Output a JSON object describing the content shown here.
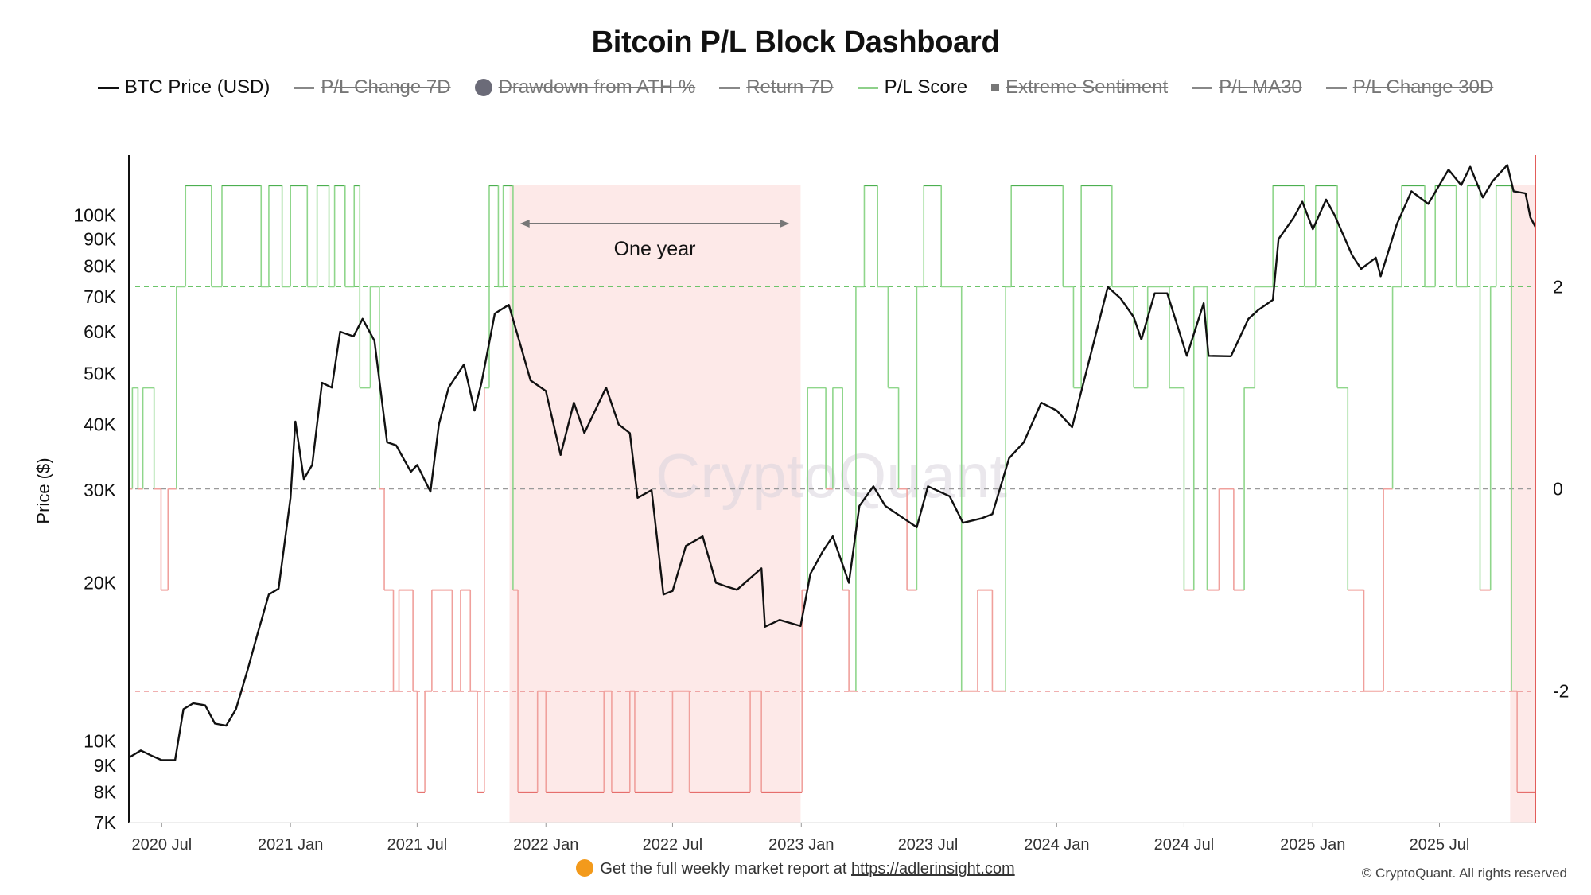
{
  "title": "Bitcoin P/L Block Dashboard",
  "legend": [
    {
      "label": "BTC Price (USD)",
      "marker": "line",
      "color": "#111111",
      "active": true
    },
    {
      "label": "P/L Change 7D",
      "marker": "line",
      "color": "#888888",
      "active": false
    },
    {
      "label": "Drawdown from ATH %",
      "marker": "dot",
      "color": "#6b6b78",
      "active": false
    },
    {
      "label": "Return 7D",
      "marker": "line",
      "color": "#888888",
      "active": false
    },
    {
      "label": "P/L Score",
      "marker": "line",
      "color": "#8ed08a",
      "active": true
    },
    {
      "label": "Extreme Sentiment",
      "marker": "square",
      "color": "#777777",
      "active": false
    },
    {
      "label": "P/L MA30",
      "marker": "line",
      "color": "#888888",
      "active": false
    },
    {
      "label": "P/L Change 30D",
      "marker": "line",
      "color": "#888888",
      "active": false
    }
  ],
  "footer": {
    "text": "Get the full weekly market report at",
    "url": "https://adlerinsight.com"
  },
  "copyright": "© CryptoQuant. All rights reserved",
  "watermark": "CryptoQuant",
  "chart_data": {
    "type": "line",
    "ylabel": "Price ($)",
    "y_scale": "log",
    "ylim": [
      7000,
      130000
    ],
    "y2lim": [
      -3.3,
      3.3
    ],
    "y_ticks": [
      {
        "label": "7K",
        "value": 7000
      },
      {
        "label": "8K",
        "value": 8000
      },
      {
        "label": "9K",
        "value": 9000
      },
      {
        "label": "10K",
        "value": 10000
      },
      {
        "label": "20K",
        "value": 20000
      },
      {
        "label": "30K",
        "value": 30000
      },
      {
        "label": "40K",
        "value": 40000
      },
      {
        "label": "50K",
        "value": 50000
      },
      {
        "label": "60K",
        "value": 60000
      },
      {
        "label": "70K",
        "value": 70000
      },
      {
        "label": "80K",
        "value": 80000
      },
      {
        "label": "90K",
        "value": 90000
      },
      {
        "label": "100K",
        "value": 100000
      }
    ],
    "y2_ticks": [
      {
        "label": "2",
        "value": 2
      },
      {
        "label": "0",
        "value": 0
      },
      {
        "label": "-2",
        "value": -2
      }
    ],
    "x_range": [
      "2020-05-15",
      "2025-11-15"
    ],
    "x_ticks": [
      {
        "label": "2020 Jul",
        "date": "2020-07-01"
      },
      {
        "label": "2021 Jan",
        "date": "2021-01-01"
      },
      {
        "label": "2021 Jul",
        "date": "2021-07-01"
      },
      {
        "label": "2022 Jan",
        "date": "2022-01-01"
      },
      {
        "label": "2022 Jul",
        "date": "2022-07-01"
      },
      {
        "label": "2023 Jan",
        "date": "2023-01-01"
      },
      {
        "label": "2023 Jul",
        "date": "2023-07-01"
      },
      {
        "label": "2024 Jan",
        "date": "2024-01-01"
      },
      {
        "label": "2024 Jul",
        "date": "2024-07-01"
      },
      {
        "label": "2025 Jan",
        "date": "2025-01-01"
      },
      {
        "label": "2025 Jul",
        "date": "2025-07-01"
      }
    ],
    "threshold_lines": [
      {
        "value": 2,
        "color": "#6cc46a"
      },
      {
        "value": 0,
        "color": "#9a9a9a"
      },
      {
        "value": -2,
        "color": "#e06060"
      }
    ],
    "shaded_regions": [
      {
        "start": "2021-11-10",
        "end": "2022-12-31",
        "color": "#fde9e8"
      },
      {
        "start": "2025-10-10",
        "end": "2025-11-15",
        "color": "#fde9e8"
      }
    ],
    "annotation": {
      "text": "One year",
      "start": "2021-11-25",
      "end": "2022-12-15",
      "y_value": 105000
    },
    "series": [
      {
        "name": "BTC Price (USD)",
        "color": "#111111",
        "points": [
          [
            "2020-05-15",
            9300
          ],
          [
            "2020-06-01",
            9600
          ],
          [
            "2020-06-15",
            9400
          ],
          [
            "2020-07-01",
            9200
          ],
          [
            "2020-07-20",
            9200
          ],
          [
            "2020-08-01",
            11500
          ],
          [
            "2020-08-15",
            11800
          ],
          [
            "2020-09-01",
            11700
          ],
          [
            "2020-09-15",
            10800
          ],
          [
            "2020-10-01",
            10700
          ],
          [
            "2020-10-15",
            11500
          ],
          [
            "2020-11-01",
            13700
          ],
          [
            "2020-11-15",
            16000
          ],
          [
            "2020-12-01",
            19000
          ],
          [
            "2020-12-15",
            19500
          ],
          [
            "2021-01-01",
            29000
          ],
          [
            "2021-01-08",
            40500
          ],
          [
            "2021-01-20",
            31500
          ],
          [
            "2021-02-01",
            33500
          ],
          [
            "2021-02-15",
            48000
          ],
          [
            "2021-03-01",
            47000
          ],
          [
            "2021-03-13",
            60000
          ],
          [
            "2021-04-01",
            58800
          ],
          [
            "2021-04-14",
            63500
          ],
          [
            "2021-05-01",
            57700
          ],
          [
            "2021-05-19",
            37000
          ],
          [
            "2021-06-01",
            36500
          ],
          [
            "2021-06-22",
            32500
          ],
          [
            "2021-07-01",
            33500
          ],
          [
            "2021-07-20",
            29800
          ],
          [
            "2021-08-01",
            40000
          ],
          [
            "2021-08-15",
            47000
          ],
          [
            "2021-09-06",
            52000
          ],
          [
            "2021-09-21",
            42500
          ],
          [
            "2021-10-01",
            48000
          ],
          [
            "2021-10-20",
            65000
          ],
          [
            "2021-11-09",
            67500
          ],
          [
            "2021-11-25",
            57000
          ],
          [
            "2021-12-10",
            48500
          ],
          [
            "2022-01-01",
            46300
          ],
          [
            "2022-01-22",
            35000
          ],
          [
            "2022-02-10",
            44000
          ],
          [
            "2022-02-25",
            38500
          ],
          [
            "2022-03-28",
            47000
          ],
          [
            "2022-04-15",
            40000
          ],
          [
            "2022-05-01",
            38500
          ],
          [
            "2022-05-12",
            29000
          ],
          [
            "2022-06-01",
            30000
          ],
          [
            "2022-06-18",
            19000
          ],
          [
            "2022-07-01",
            19300
          ],
          [
            "2022-07-20",
            23500
          ],
          [
            "2022-08-13",
            24500
          ],
          [
            "2022-09-01",
            20000
          ],
          [
            "2022-09-15",
            19700
          ],
          [
            "2022-10-01",
            19400
          ],
          [
            "2022-11-05",
            21300
          ],
          [
            "2022-11-10",
            16500
          ],
          [
            "2022-12-01",
            17000
          ],
          [
            "2022-12-31",
            16550
          ],
          [
            "2023-01-14",
            20800
          ],
          [
            "2023-02-01",
            23000
          ],
          [
            "2023-02-15",
            24500
          ],
          [
            "2023-03-10",
            20000
          ],
          [
            "2023-03-25",
            28000
          ],
          [
            "2023-04-14",
            30500
          ],
          [
            "2023-05-01",
            28000
          ],
          [
            "2023-06-15",
            25500
          ],
          [
            "2023-07-01",
            30500
          ],
          [
            "2023-08-01",
            29200
          ],
          [
            "2023-08-20",
            26000
          ],
          [
            "2023-09-15",
            26500
          ],
          [
            "2023-10-01",
            27000
          ],
          [
            "2023-10-25",
            34500
          ],
          [
            "2023-11-15",
            37000
          ],
          [
            "2023-12-10",
            44000
          ],
          [
            "2024-01-01",
            42500
          ],
          [
            "2024-01-23",
            39500
          ],
          [
            "2024-02-15",
            52000
          ],
          [
            "2024-03-14",
            73000
          ],
          [
            "2024-04-01",
            69500
          ],
          [
            "2024-04-20",
            64000
          ],
          [
            "2024-05-01",
            58000
          ],
          [
            "2024-05-20",
            71000
          ],
          [
            "2024-06-07",
            71000
          ],
          [
            "2024-07-05",
            54000
          ],
          [
            "2024-07-29",
            68000
          ],
          [
            "2024-08-05",
            54000
          ],
          [
            "2024-09-06",
            53900
          ],
          [
            "2024-10-01",
            63500
          ],
          [
            "2024-10-15",
            66000
          ],
          [
            "2024-11-05",
            69000
          ],
          [
            "2024-11-13",
            90000
          ],
          [
            "2024-12-05",
            99000
          ],
          [
            "2024-12-17",
            106000
          ],
          [
            "2025-01-01",
            94000
          ],
          [
            "2025-01-20",
            107000
          ],
          [
            "2025-02-01",
            100000
          ],
          [
            "2025-02-26",
            84000
          ],
          [
            "2025-03-11",
            79000
          ],
          [
            "2025-04-01",
            83000
          ],
          [
            "2025-04-08",
            76500
          ],
          [
            "2025-05-01",
            96000
          ],
          [
            "2025-05-22",
            111000
          ],
          [
            "2025-06-15",
            105000
          ],
          [
            "2025-07-14",
            122000
          ],
          [
            "2025-08-01",
            114000
          ],
          [
            "2025-08-14",
            123500
          ],
          [
            "2025-09-01",
            108000
          ],
          [
            "2025-09-15",
            116000
          ],
          [
            "2025-10-06",
            124500
          ],
          [
            "2025-10-15",
            111000
          ],
          [
            "2025-11-01",
            110000
          ],
          [
            "2025-11-08",
            99000
          ],
          [
            "2025-11-15",
            95000
          ]
        ]
      },
      {
        "name": "P/L Score",
        "type": "step",
        "points": [
          [
            "2020-05-15",
            0
          ],
          [
            "2020-05-20",
            1
          ],
          [
            "2020-05-28",
            0
          ],
          [
            "2020-06-04",
            1
          ],
          [
            "2020-06-20",
            0
          ],
          [
            "2020-06-30",
            -1
          ],
          [
            "2020-07-10",
            0
          ],
          [
            "2020-07-22",
            2
          ],
          [
            "2020-08-04",
            3
          ],
          [
            "2020-09-10",
            2
          ],
          [
            "2020-09-25",
            3
          ],
          [
            "2020-11-20",
            2
          ],
          [
            "2020-12-01",
            3
          ],
          [
            "2020-12-20",
            2
          ],
          [
            "2021-01-01",
            3
          ],
          [
            "2021-01-25",
            2
          ],
          [
            "2021-02-08",
            3
          ],
          [
            "2021-02-25",
            2
          ],
          [
            "2021-03-05",
            3
          ],
          [
            "2021-03-20",
            2
          ],
          [
            "2021-04-02",
            3
          ],
          [
            "2021-04-10",
            1
          ],
          [
            "2021-04-25",
            2
          ],
          [
            "2021-05-08",
            0
          ],
          [
            "2021-05-15",
            -1
          ],
          [
            "2021-05-28",
            -2
          ],
          [
            "2021-06-05",
            -1
          ],
          [
            "2021-06-25",
            -2
          ],
          [
            "2021-07-01",
            -3
          ],
          [
            "2021-07-12",
            -2
          ],
          [
            "2021-07-22",
            -1
          ],
          [
            "2021-08-10",
            -1
          ],
          [
            "2021-08-20",
            -2
          ],
          [
            "2021-09-01",
            -1
          ],
          [
            "2021-09-15",
            -2
          ],
          [
            "2021-09-25",
            -3
          ],
          [
            "2021-10-05",
            1
          ],
          [
            "2021-10-12",
            3
          ],
          [
            "2021-10-25",
            2
          ],
          [
            "2021-11-01",
            3
          ],
          [
            "2021-11-15",
            -1
          ],
          [
            "2021-11-22",
            -3
          ],
          [
            "2021-12-20",
            -2
          ],
          [
            "2022-01-01",
            -3
          ],
          [
            "2022-03-25",
            -2
          ],
          [
            "2022-04-05",
            -3
          ],
          [
            "2022-05-01",
            -2
          ],
          [
            "2022-05-08",
            -3
          ],
          [
            "2022-07-01",
            -2
          ],
          [
            "2022-07-25",
            -3
          ],
          [
            "2022-10-20",
            -2
          ],
          [
            "2022-11-05",
            -3
          ],
          [
            "2023-01-02",
            -1
          ],
          [
            "2023-01-10",
            1
          ],
          [
            "2023-02-05",
            0
          ],
          [
            "2023-02-15",
            1
          ],
          [
            "2023-03-01",
            -1
          ],
          [
            "2023-03-10",
            -2
          ],
          [
            "2023-03-20",
            2
          ],
          [
            "2023-04-01",
            3
          ],
          [
            "2023-04-20",
            2
          ],
          [
            "2023-05-05",
            1
          ],
          [
            "2023-05-20",
            0
          ],
          [
            "2023-06-01",
            -1
          ],
          [
            "2023-06-15",
            2
          ],
          [
            "2023-06-25",
            3
          ],
          [
            "2023-07-20",
            2
          ],
          [
            "2023-08-18",
            -2
          ],
          [
            "2023-09-10",
            -1
          ],
          [
            "2023-10-01",
            -2
          ],
          [
            "2023-10-20",
            2
          ],
          [
            "2023-10-28",
            3
          ],
          [
            "2024-01-10",
            2
          ],
          [
            "2024-01-25",
            1
          ],
          [
            "2024-02-05",
            3
          ],
          [
            "2024-03-20",
            2
          ],
          [
            "2024-04-20",
            1
          ],
          [
            "2024-05-10",
            2
          ],
          [
            "2024-06-10",
            1
          ],
          [
            "2024-07-01",
            -1
          ],
          [
            "2024-07-15",
            2
          ],
          [
            "2024-08-03",
            -1
          ],
          [
            "2024-08-20",
            0
          ],
          [
            "2024-09-10",
            -1
          ],
          [
            "2024-09-25",
            1
          ],
          [
            "2024-10-10",
            2
          ],
          [
            "2024-11-05",
            3
          ],
          [
            "2024-12-20",
            2
          ],
          [
            "2025-01-05",
            3
          ],
          [
            "2025-02-05",
            1
          ],
          [
            "2025-02-20",
            -1
          ],
          [
            "2025-03-15",
            -2
          ],
          [
            "2025-04-12",
            0
          ],
          [
            "2025-04-25",
            2
          ],
          [
            "2025-05-08",
            3
          ],
          [
            "2025-06-10",
            2
          ],
          [
            "2025-06-25",
            3
          ],
          [
            "2025-07-25",
            2
          ],
          [
            "2025-08-10",
            3
          ],
          [
            "2025-08-28",
            -1
          ],
          [
            "2025-09-12",
            2
          ],
          [
            "2025-09-20",
            3
          ],
          [
            "2025-10-12",
            -2
          ],
          [
            "2025-10-20",
            -3
          ],
          [
            "2025-11-15",
            -3
          ]
        ]
      }
    ]
  }
}
